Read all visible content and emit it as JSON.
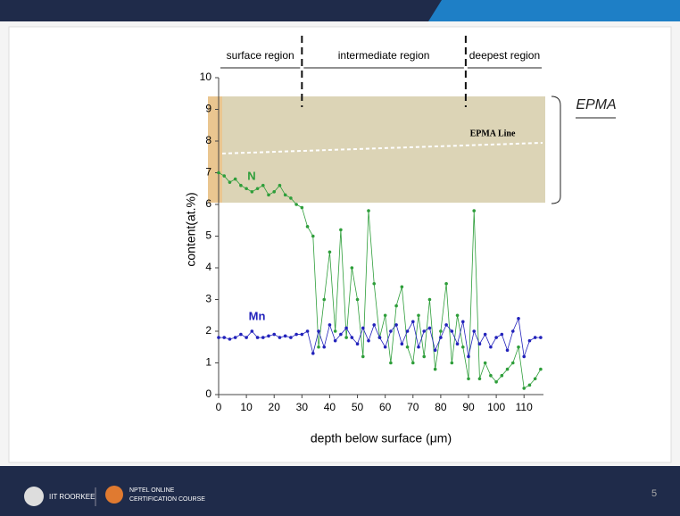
{
  "chart_data": {
    "type": "line",
    "x_label": "depth below surface (μm)",
    "y_label": "content(at.%)",
    "xlim": [
      0,
      117
    ],
    "ylim": [
      0,
      10
    ],
    "xticks": [
      0,
      10,
      20,
      30,
      40,
      50,
      60,
      70,
      80,
      90,
      100,
      110
    ],
    "yticks": [
      0,
      1,
      2,
      3,
      4,
      5,
      6,
      7,
      8,
      9,
      10
    ],
    "regions": [
      {
        "label": "surface region",
        "from": 0,
        "to": 30
      },
      {
        "label": "intermediate region",
        "from": 30,
        "to": 89
      },
      {
        "label": "deepest region",
        "from": 89,
        "to": 117
      }
    ],
    "image_label": "EPMA Line",
    "handwritten_note": "EPMA",
    "x": [
      0,
      2,
      4,
      6,
      8,
      10,
      12,
      14,
      16,
      18,
      20,
      22,
      24,
      26,
      28,
      30,
      32,
      34,
      36,
      38,
      40,
      42,
      44,
      46,
      48,
      50,
      52,
      54,
      56,
      58,
      60,
      62,
      64,
      66,
      68,
      70,
      72,
      74,
      76,
      78,
      80,
      82,
      84,
      86,
      88,
      90,
      92,
      94,
      96,
      98,
      100,
      102,
      104,
      106,
      108,
      110,
      112,
      114,
      116
    ],
    "series": [
      {
        "name": "N",
        "color": "#2e9e3a",
        "values": [
          7.0,
          6.9,
          6.7,
          6.8,
          6.6,
          6.5,
          6.4,
          6.5,
          6.6,
          6.3,
          6.4,
          6.6,
          6.3,
          6.2,
          6.0,
          5.9,
          5.3,
          5.0,
          1.5,
          3.0,
          4.5,
          2.0,
          5.2,
          1.8,
          4.0,
          3.0,
          1.2,
          5.8,
          3.5,
          1.8,
          2.5,
          1.0,
          2.8,
          3.4,
          1.5,
          1.0,
          2.5,
          1.2,
          3.0,
          0.8,
          2.0,
          3.5,
          1.0,
          2.5,
          1.5,
          0.5,
          5.8,
          0.5,
          1.0,
          0.6,
          0.4,
          0.6,
          0.8,
          1.0,
          1.5,
          0.2,
          0.3,
          0.5,
          0.8
        ]
      },
      {
        "name": "Mn",
        "color": "#2222bb",
        "values": [
          1.8,
          1.8,
          1.75,
          1.8,
          1.9,
          1.8,
          2.0,
          1.8,
          1.8,
          1.85,
          1.9,
          1.8,
          1.85,
          1.8,
          1.9,
          1.9,
          2.0,
          1.3,
          2.0,
          1.5,
          2.2,
          1.7,
          1.9,
          2.1,
          1.8,
          1.6,
          2.1,
          1.7,
          2.2,
          1.8,
          1.5,
          2.0,
          2.2,
          1.6,
          2.0,
          2.3,
          1.5,
          2.0,
          2.1,
          1.4,
          1.8,
          2.2,
          2.0,
          1.6,
          2.3,
          1.2,
          2.0,
          1.6,
          1.9,
          1.5,
          1.8,
          1.9,
          1.4,
          2.0,
          2.4,
          1.2,
          1.7,
          1.8,
          1.8
        ]
      }
    ]
  },
  "footer": {
    "institute": "IIT ROORKEE",
    "course_line1": "NPTEL ONLINE",
    "course_line2": "CERTIFICATION COURSE",
    "page": "5"
  }
}
